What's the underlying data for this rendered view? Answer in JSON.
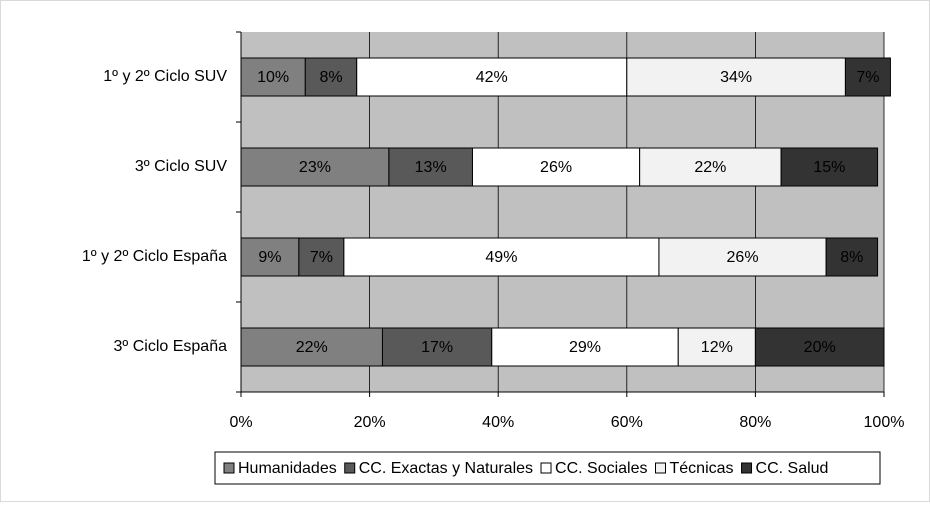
{
  "chart_data": {
    "type": "bar",
    "orientation": "horizontal",
    "stacked": true,
    "categories": [
      "1º y 2º Ciclo SUV",
      "3º Ciclo SUV",
      "1º y 2º Ciclo España",
      "3º Ciclo España"
    ],
    "series": [
      {
        "name": "Humanidades",
        "color": "#808080",
        "values": [
          10,
          23,
          9,
          22
        ]
      },
      {
        "name": "CC. Exactas y Naturales",
        "color": "#595959",
        "values": [
          8,
          13,
          7,
          17
        ]
      },
      {
        "name": "CC. Sociales",
        "color": "#ffffff",
        "values": [
          42,
          26,
          49,
          29
        ]
      },
      {
        "name": "Técnicas",
        "color": "#f2f2f2",
        "values": [
          34,
          22,
          26,
          12
        ]
      },
      {
        "name": "CC. Salud",
        "color": "#333333",
        "values": [
          7,
          15,
          8,
          20
        ]
      }
    ],
    "value_labels": [
      [
        "10%",
        "23%",
        "9%",
        "22%"
      ],
      [
        "8%",
        "13%",
        "7%",
        "17%"
      ],
      [
        "42%",
        "26%",
        "49%",
        "29%"
      ],
      [
        "34%",
        "22%",
        "26%",
        "12%"
      ],
      [
        "7%",
        "15%",
        "8%",
        "20%"
      ]
    ],
    "xlim": [
      0,
      100
    ],
    "xticks": [
      {
        "value": 0,
        "label": "0%"
      },
      {
        "value": 20,
        "label": "20%"
      },
      {
        "value": 40,
        "label": "40%"
      },
      {
        "value": 60,
        "label": "60%"
      },
      {
        "value": 80,
        "label": "80%"
      },
      {
        "value": 100,
        "label": "100%"
      }
    ],
    "grid": true,
    "legend": "bottom"
  }
}
